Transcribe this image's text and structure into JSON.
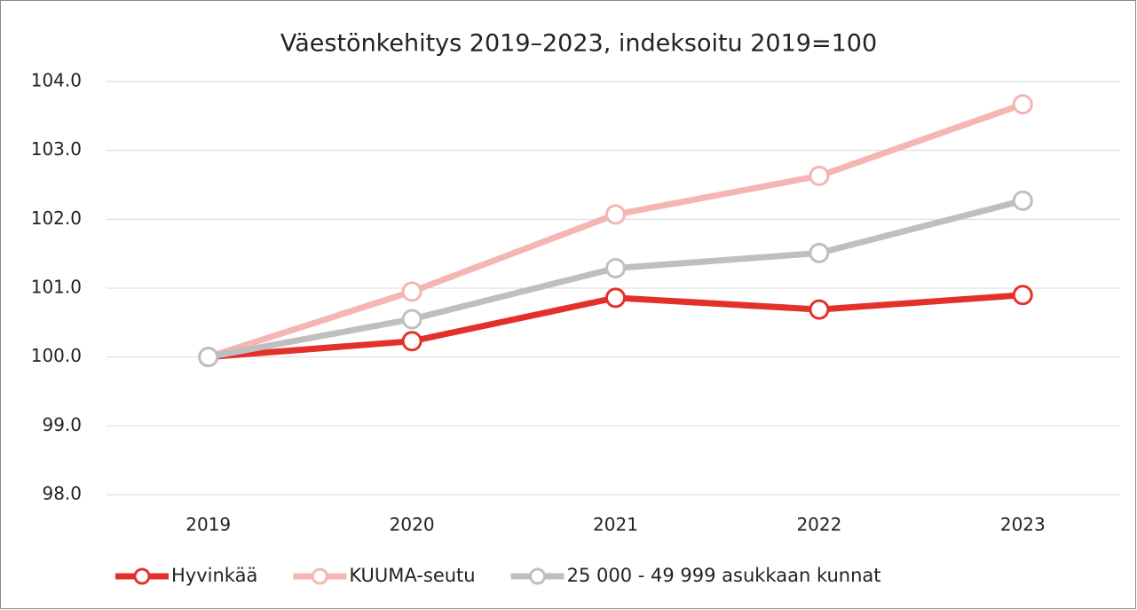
{
  "chart_data": {
    "type": "line",
    "title": "Väestönkehitys 2019–2023, indeksoitu 2019=100",
    "categories": [
      "2019",
      "2020",
      "2021",
      "2022",
      "2023"
    ],
    "series": [
      {
        "name": "Hyvinkää",
        "color": "#e3302b",
        "values": [
          100.0,
          100.23,
          100.86,
          100.69,
          100.9
        ]
      },
      {
        "name": "KUUMA-seutu",
        "color": "#f4b5b3",
        "values": [
          100.0,
          100.95,
          102.07,
          102.63,
          103.67
        ]
      },
      {
        "name": "25 000 - 49 999 asukkaan kunnat",
        "color": "#bfbfbf",
        "values": [
          100.0,
          100.55,
          101.29,
          101.51,
          102.27
        ]
      }
    ],
    "ylim": [
      98,
      104
    ],
    "yticks": [
      {
        "value": 98,
        "label": "98.0"
      },
      {
        "value": 99,
        "label": "99.0"
      },
      {
        "value": 100,
        "label": "100.0"
      },
      {
        "value": 101,
        "label": "101.0"
      },
      {
        "value": 102,
        "label": "102.0"
      },
      {
        "value": 103,
        "label": "103.0"
      },
      {
        "value": 104,
        "label": "104.0"
      }
    ],
    "grid": true,
    "legend": "bottom"
  }
}
